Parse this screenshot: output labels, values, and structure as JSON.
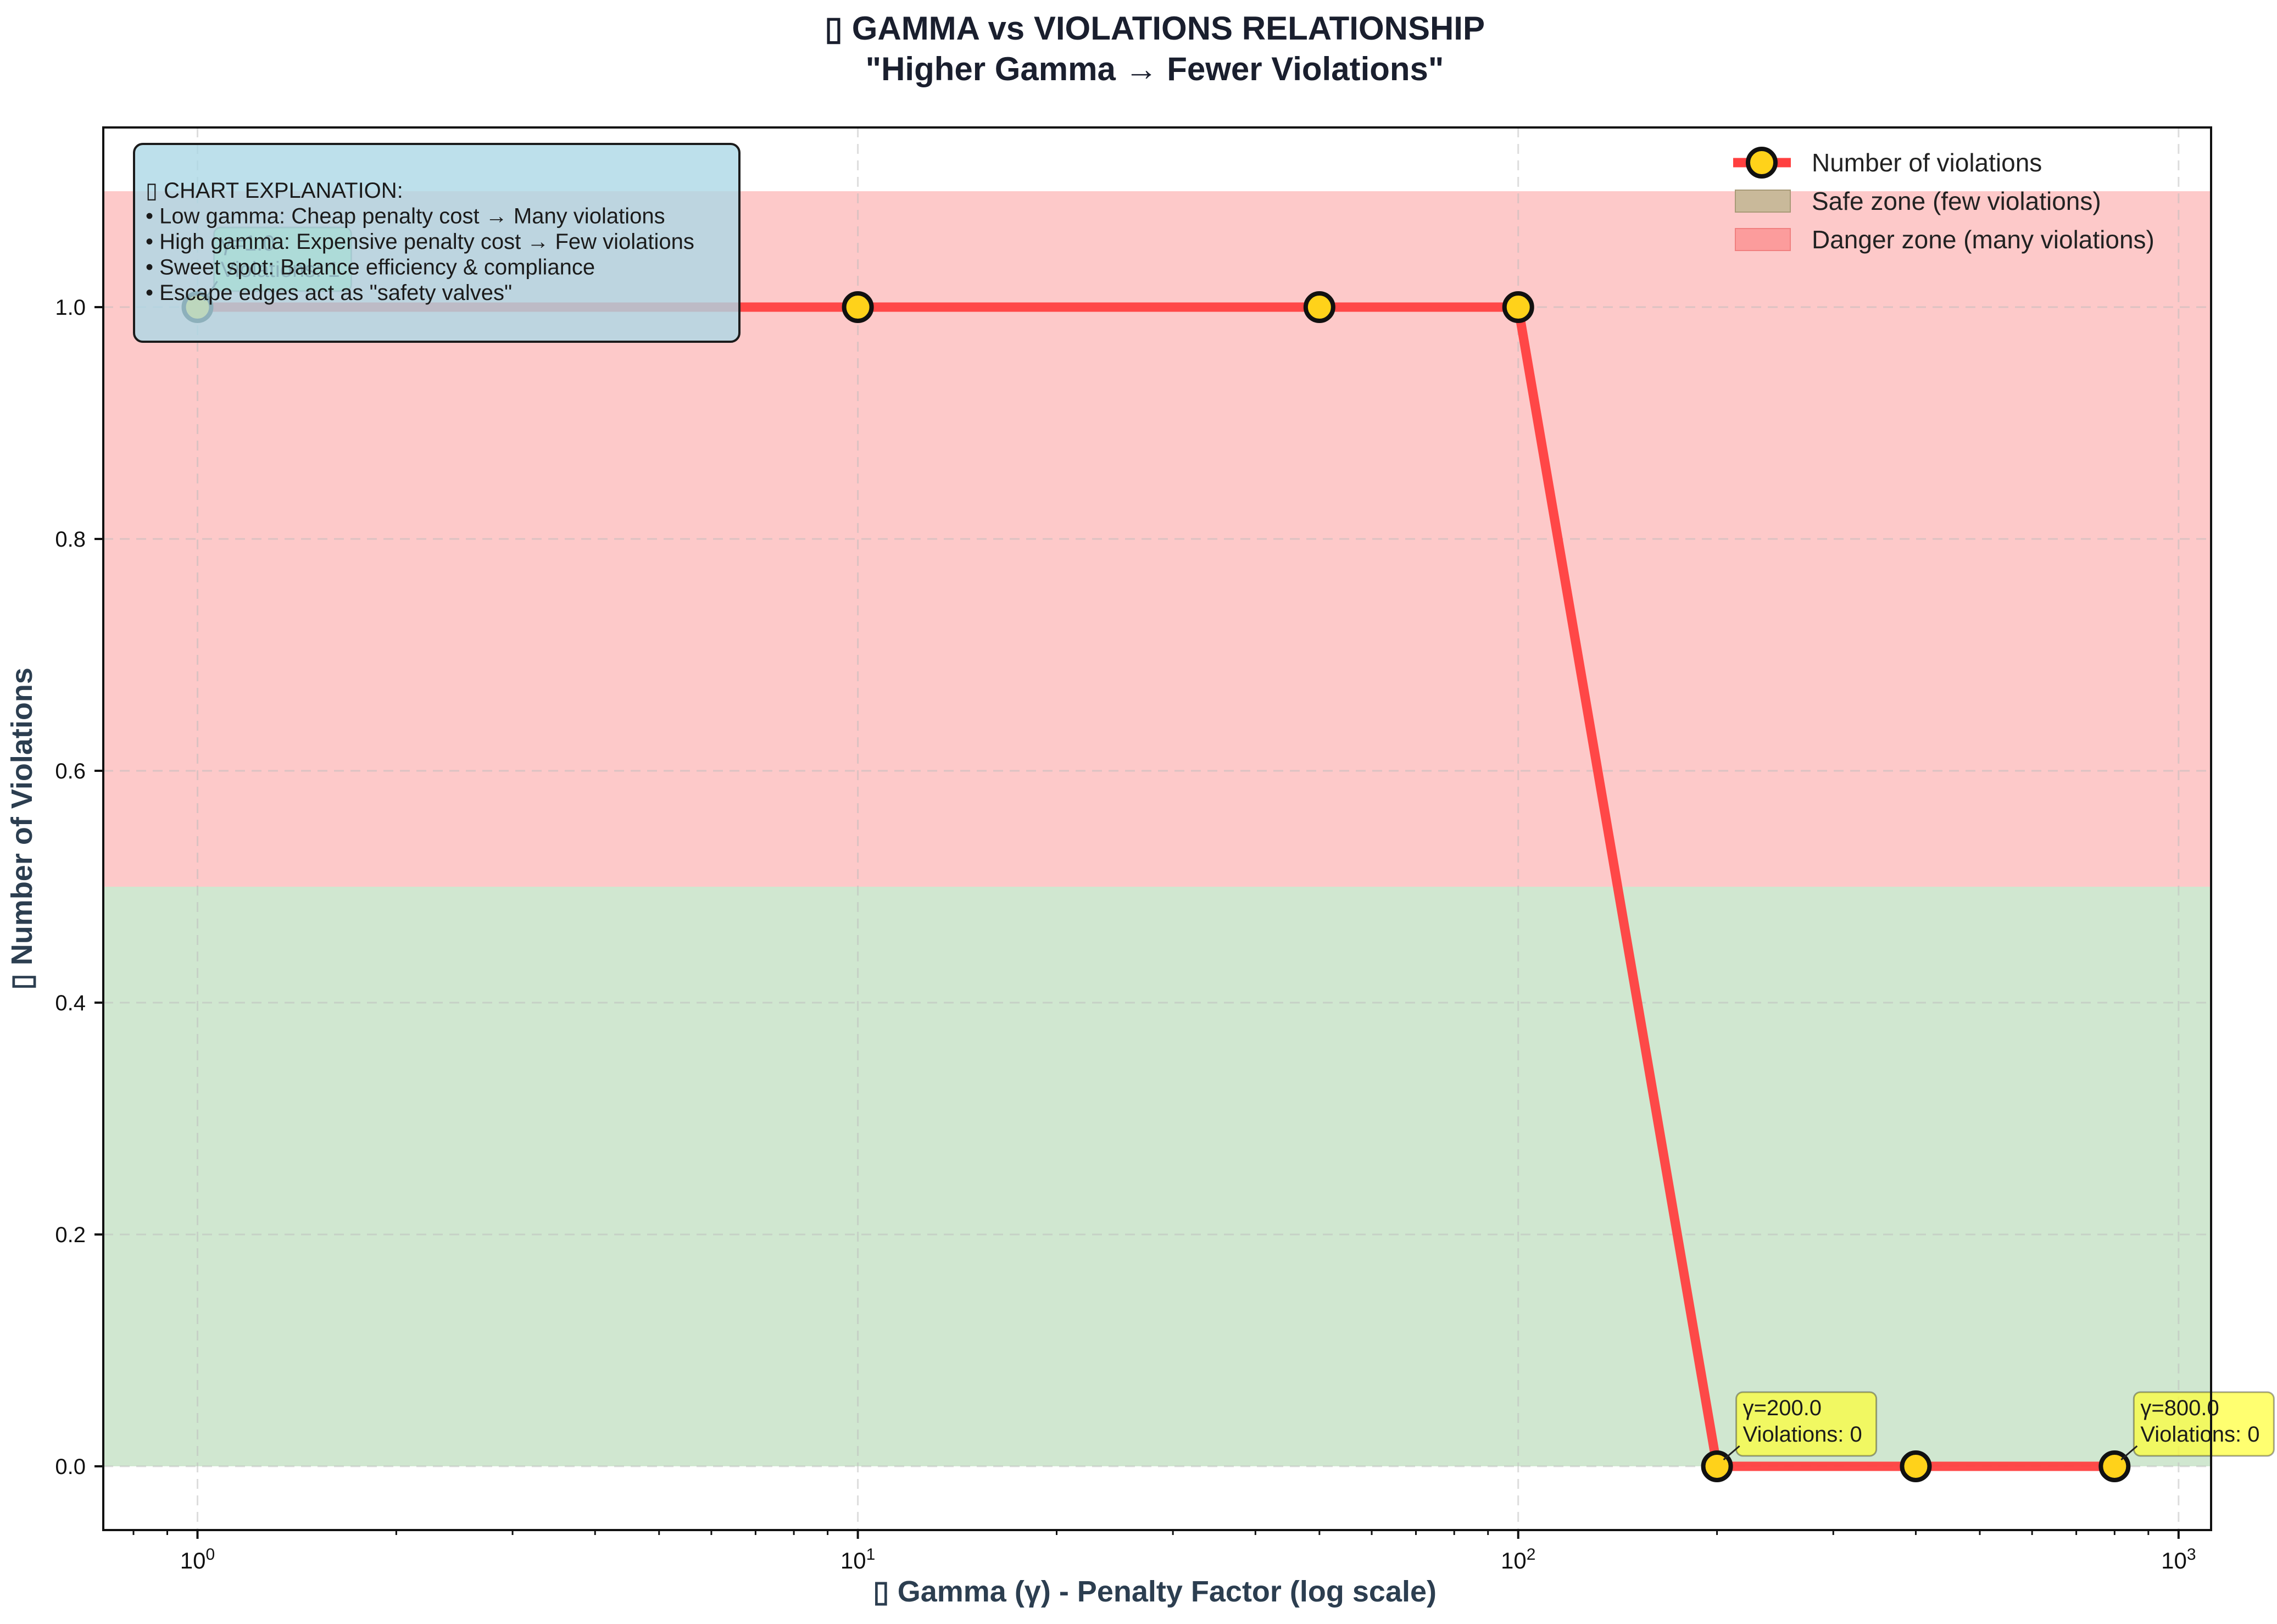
{
  "header": {
    "title": "▯ GAMMA vs VIOLATIONS RELATIONSHIP",
    "subtitle": "\"Higher Gamma → Fewer Violations\""
  },
  "chart_data": {
    "type": "line",
    "title": "▯ GAMMA vs VIOLATIONS RELATIONSHIP",
    "subtitle": "\"Higher Gamma → Fewer Violations\"",
    "xlabel": "▯ Gamma (γ) - Penalty Factor (log scale)",
    "ylabel": "▯ Number of Violations",
    "x_scale": "log",
    "xlim": [
      0.72,
      1120
    ],
    "ylim": [
      -0.055,
      1.155
    ],
    "grid": true,
    "x_ticks": [
      {
        "value": 1,
        "base": "10",
        "exp": "0"
      },
      {
        "value": 10,
        "base": "10",
        "exp": "1"
      },
      {
        "value": 100,
        "base": "10",
        "exp": "2"
      },
      {
        "value": 1000,
        "base": "10",
        "exp": "3"
      }
    ],
    "y_ticks": [
      "0.0",
      "0.2",
      "0.4",
      "0.6",
      "0.8",
      "1.0"
    ],
    "series": [
      {
        "name": "Number of violations",
        "x": [
          1,
          10,
          50,
          100,
          200,
          400,
          800
        ],
        "y": [
          1,
          1,
          1,
          1,
          0,
          0,
          0
        ],
        "line_color": "#ff4040",
        "marker_color": "#ffd21a"
      }
    ],
    "zones": [
      {
        "name": "Safe zone (few violations)",
        "y_range": [
          0,
          0.5
        ],
        "color": "#a9d3a9"
      },
      {
        "name": "Danger zone (many violations)",
        "y_range": [
          0.5,
          1.1
        ],
        "color": "#fc9c9c"
      }
    ],
    "legend": {
      "position": "top-right",
      "entries": [
        "Number of violations",
        "Safe zone (few violations)",
        "Danger zone (many violations)"
      ]
    },
    "explanation": {
      "lines": [
        "▯ CHART EXPLANATION:",
        "• Low gamma: Cheap penalty cost → Many violations",
        "• High gamma: Expensive penalty cost → Few violations",
        "• Sweet spot: Balance efficiency & compliance",
        "• Escape edges act as \"safety valves\""
      ],
      "color": "#add8e6"
    },
    "annotations": [
      {
        "x": 1,
        "y": 1,
        "lines": [
          "γ=1.0",
          "Violations: 1"
        ],
        "color": "#90ee90"
      },
      {
        "x": 200,
        "y": 0,
        "lines": [
          "γ=200.0",
          "Violations: 0"
        ],
        "color": "#ffff33"
      },
      {
        "x": 800,
        "y": 0,
        "lines": [
          "γ=800.0",
          "Violations: 0"
        ],
        "color": "#ffff33"
      }
    ]
  }
}
